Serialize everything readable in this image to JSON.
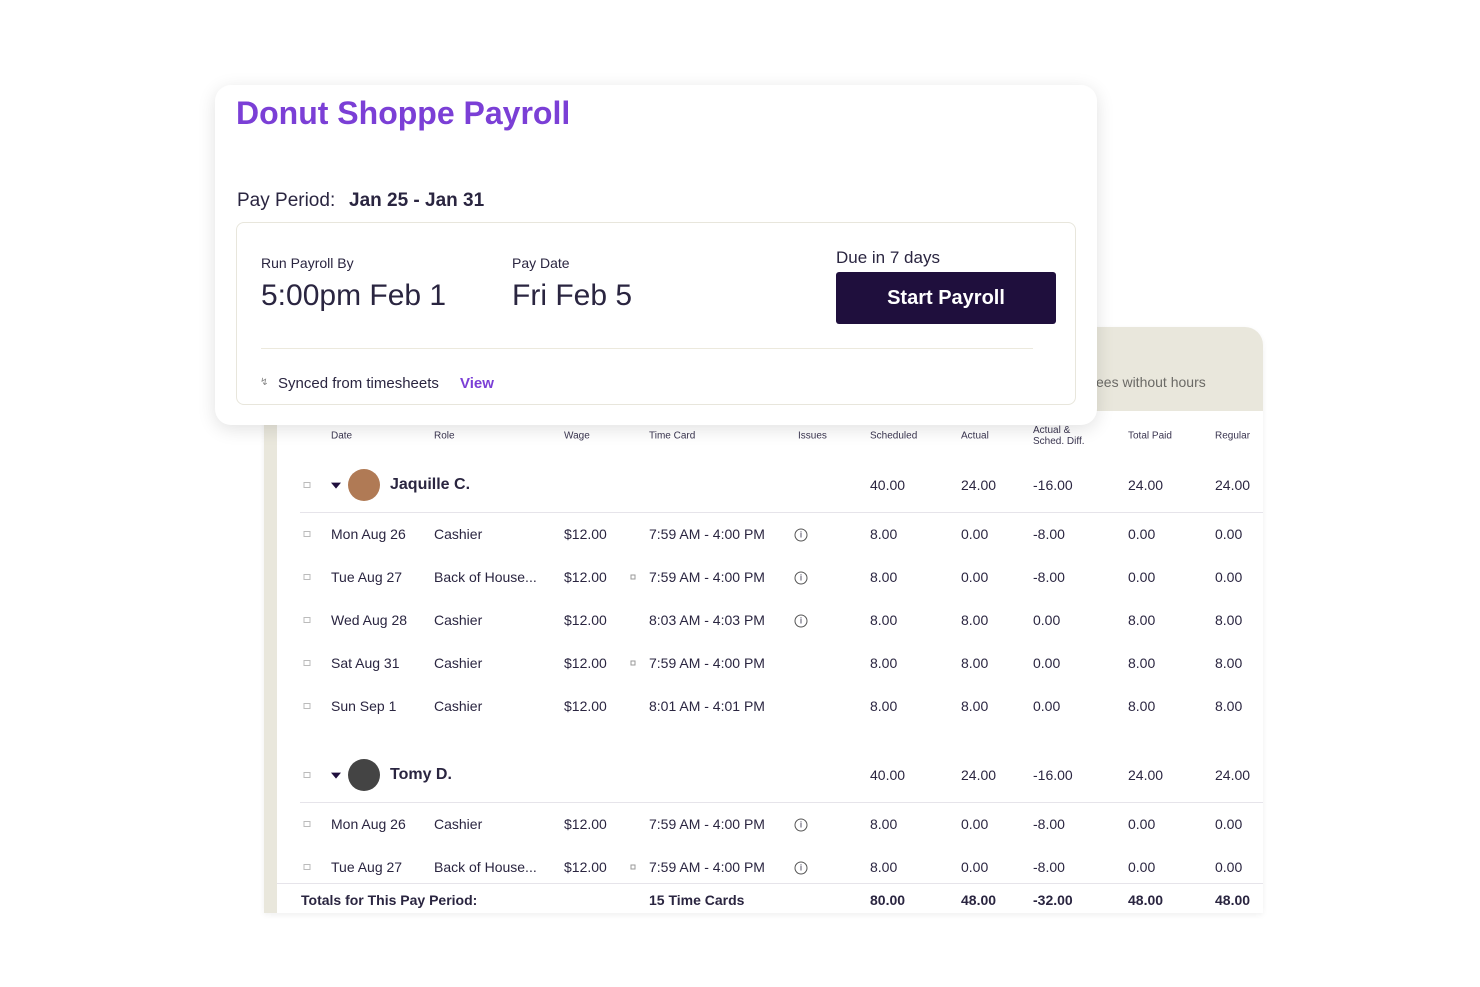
{
  "card": {
    "title": "Donut Shoppe Payroll",
    "pay_period_label": "Pay Period:",
    "pay_period": "Jan 25 - Jan 31",
    "run_by_label": "Run Payroll By",
    "run_by": "5:00pm Feb 1",
    "pay_date_label": "Pay Date",
    "pay_date": "Fri Feb 5",
    "due": "Due in 7 days",
    "button": "Start Payroll",
    "synced": "Synced from timesheets",
    "view": "View"
  },
  "table": {
    "banner": "ees without hours",
    "headers": [
      "Date",
      "Role",
      "Wage",
      "Time Card",
      "Issues",
      "Scheduled",
      "Actual",
      "Actual & Sched. Diff.",
      "Total Paid",
      "Regular"
    ],
    "groups": [
      {
        "name": "Jaquille C.",
        "totals": [
          "40.00",
          "24.00",
          "-16.00",
          "24.00",
          "24.00"
        ],
        "rows": [
          [
            "Mon Aug 26",
            "Cashier",
            "$12.00",
            "7:59 AM - 4:00 PM",
            "8.00",
            "0.00",
            "-8.00",
            "0.00",
            "0.00"
          ],
          [
            "Tue Aug 27",
            "Back of House...",
            "$12.00",
            "7:59 AM - 4:00 PM",
            "8.00",
            "0.00",
            "-8.00",
            "0.00",
            "0.00"
          ],
          [
            "Wed Aug 28",
            "Cashier",
            "$12.00",
            "8:03 AM - 4:03 PM",
            "8.00",
            "8.00",
            "0.00",
            "8.00",
            "8.00"
          ],
          [
            "Sat Aug 31",
            "Cashier",
            "$12.00",
            "7:59 AM - 4:00 PM",
            "8.00",
            "8.00",
            "0.00",
            "8.00",
            "8.00"
          ],
          [
            "Sun Sep 1",
            "Cashier",
            "$12.00",
            "8:01 AM - 4:01 PM",
            "8.00",
            "8.00",
            "0.00",
            "8.00",
            "8.00"
          ]
        ]
      },
      {
        "name": "Tomy D.",
        "totals": [
          "40.00",
          "24.00",
          "-16.00",
          "24.00",
          "24.00"
        ],
        "rows": [
          [
            "Mon Aug 26",
            "Cashier",
            "$12.00",
            "7:59 AM - 4:00 PM",
            "8.00",
            "0.00",
            "-8.00",
            "0.00",
            "0.00"
          ],
          [
            "Tue Aug 27",
            "Back of House...",
            "$12.00",
            "7:59 AM - 4:00 PM",
            "8.00",
            "0.00",
            "-8.00",
            "0.00",
            "0.00"
          ]
        ]
      }
    ],
    "footer": {
      "label": "Totals for This Pay Period:",
      "time_cards": "15 Time Cards",
      "totals": [
        "80.00",
        "48.00",
        "-32.00",
        "48.00",
        "48.00"
      ]
    }
  }
}
